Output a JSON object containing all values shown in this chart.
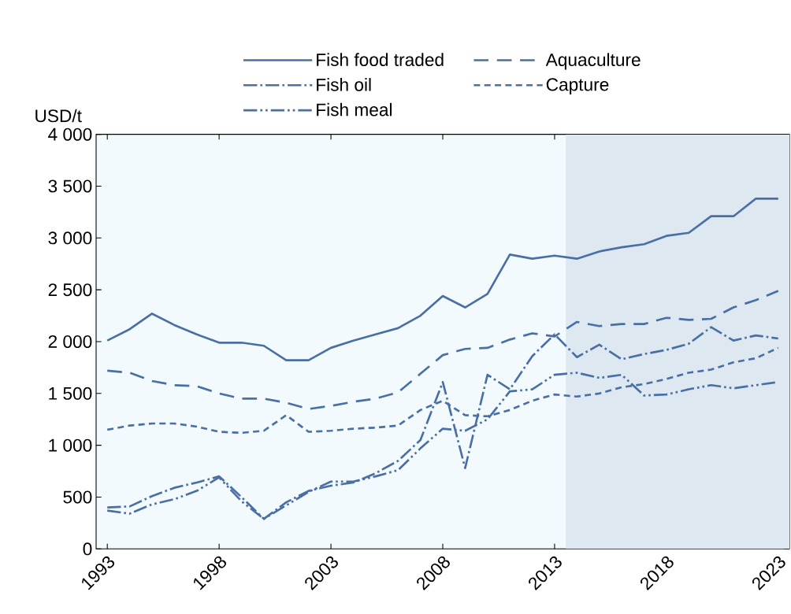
{
  "chart_data": {
    "type": "line",
    "ylabel": "USD/t",
    "legend": "top",
    "x": [
      1993,
      1994,
      1995,
      1996,
      1997,
      1998,
      1999,
      2000,
      2001,
      2002,
      2003,
      2004,
      2005,
      2006,
      2007,
      2008,
      2009,
      2010,
      2011,
      2012,
      2013,
      2014,
      2015,
      2016,
      2017,
      2018,
      2019,
      2020,
      2021,
      2022,
      2023
    ],
    "xlim": [
      1992.5,
      2023.5
    ],
    "xticks": [
      1993,
      1998,
      2003,
      2008,
      2013,
      2018,
      2023
    ],
    "ylim": [
      0,
      4000
    ],
    "yticks": [
      0,
      500,
      {
        "value": 1000,
        "label": "1 000"
      },
      {
        "value": 1500,
        "label": "1 500"
      },
      {
        "value": 2000,
        "label": "2 000"
      },
      {
        "value": 2500,
        "label": "2 500"
      },
      {
        "value": 3000,
        "label": "3 000"
      },
      {
        "value": 3500,
        "label": "3 500"
      },
      {
        "value": 4000,
        "label": "4 000"
      }
    ],
    "bands": [
      {
        "axis": "x",
        "from": 2013.5,
        "to": 2023.5,
        "color": "#dde8f1"
      }
    ],
    "series": [
      {
        "name": "Fish food traded",
        "color": "#4a6fa5",
        "line_style": "solid",
        "values": [
          2010,
          2120,
          2270,
          2160,
          2070,
          1990,
          1990,
          1960,
          1820,
          1820,
          1940,
          2010,
          2070,
          2130,
          2250,
          2440,
          2330,
          2460,
          2840,
          2800,
          2830,
          2800,
          2870,
          2910,
          2940,
          3020,
          3050,
          3210,
          3210,
          3380,
          3380
        ]
      },
      {
        "name": "Aquaculture",
        "color": "#4a6fa5",
        "line_style": "dashed",
        "values": [
          1720,
          1700,
          1620,
          1580,
          1570,
          1500,
          1450,
          1450,
          1410,
          1350,
          1380,
          1420,
          1450,
          1510,
          1690,
          1870,
          1930,
          1940,
          2020,
          2080,
          2050,
          2190,
          2150,
          2170,
          2170,
          2230,
          2210,
          2220,
          2330,
          2400,
          2490
        ]
      },
      {
        "name": "Fish oil",
        "color": "#4a6fa5",
        "line_style": "dashdot",
        "values": [
          400,
          410,
          510,
          590,
          640,
          700,
          500,
          290,
          450,
          560,
          610,
          640,
          730,
          850,
          1050,
          1610,
          780,
          1680,
          1540,
          1860,
          2070,
          1850,
          1970,
          1830,
          1880,
          1920,
          1980,
          2140,
          2010,
          2060,
          2030
        ]
      },
      {
        "name": "Capture",
        "color": "#4a6fa5",
        "line_style": "shortdash",
        "values": [
          1150,
          1190,
          1210,
          1210,
          1180,
          1130,
          1120,
          1140,
          1290,
          1130,
          1140,
          1160,
          1170,
          1190,
          1340,
          1430,
          1290,
          1280,
          1340,
          1430,
          1490,
          1470,
          1500,
          1560,
          1590,
          1640,
          1700,
          1730,
          1800,
          1840,
          1940
        ]
      },
      {
        "name": "Fish meal",
        "color": "#4a6fa5",
        "line_style": "dashdotdot",
        "values": [
          370,
          340,
          430,
          480,
          560,
          690,
          460,
          290,
          420,
          550,
          650,
          650,
          700,
          760,
          970,
          1160,
          1140,
          1250,
          1520,
          1540,
          1680,
          1700,
          1650,
          1680,
          1480,
          1490,
          1540,
          1580,
          1550,
          1580,
          1610
        ]
      }
    ]
  }
}
